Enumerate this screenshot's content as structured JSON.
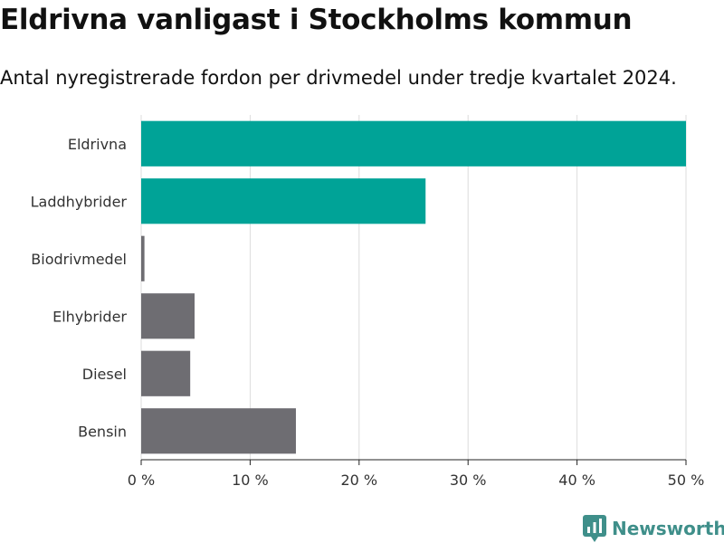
{
  "chart_data": {
    "type": "bar",
    "orientation": "horizontal",
    "title": "Eldrivna vanligast i Stockholms kommun",
    "subtitle": "Antal nyregistrerade fordon per drivmedel under tredje kvartalet 2024.",
    "categories": [
      "Eldrivna",
      "Laddhybrider",
      "Biodrivmedel",
      "Elhybrider",
      "Diesel",
      "Bensin"
    ],
    "values": [
      50.1,
      26.1,
      0.3,
      4.9,
      4.5,
      14.2
    ],
    "bar_colors": [
      "#00a397",
      "#00a397",
      "#6e6d72",
      "#6e6d72",
      "#6e6d72",
      "#6e6d72"
    ],
    "xlim": [
      0,
      50
    ],
    "xticks": [
      0,
      10,
      20,
      30,
      40,
      50
    ],
    "xtick_labels": [
      "0 %",
      "10 %",
      "20 %",
      "30 %",
      "40 %",
      "50 %"
    ],
    "grid": true,
    "xlabel": "",
    "ylabel": ""
  },
  "branding": {
    "logo_text": "Newsworthy",
    "logo_icon": "newsworthy-chart-icon",
    "accent_color": "#3f8f8a"
  }
}
